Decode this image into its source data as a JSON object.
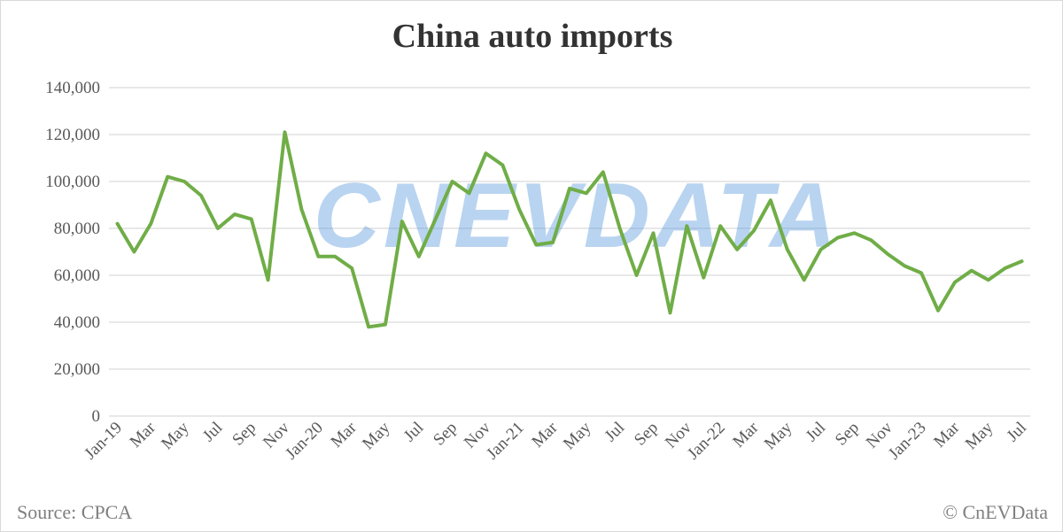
{
  "chart_data": {
    "type": "line",
    "title": "China auto imports",
    "xlabel": "",
    "ylabel": "",
    "ylim": [
      0,
      140000
    ],
    "yticks": [
      "0",
      "20,000",
      "40,000",
      "60,000",
      "80,000",
      "100,000",
      "120,000",
      "140,000"
    ],
    "grid": true,
    "legend": "none",
    "series_color": "#70ad47",
    "x": [
      "Jan-19",
      "Feb",
      "Mar",
      "Apr",
      "May",
      "Jun",
      "Jul",
      "Aug",
      "Sep",
      "Oct",
      "Nov",
      "Dec",
      "Jan-20",
      "Feb",
      "Mar",
      "Apr",
      "May",
      "Jun",
      "Jul",
      "Aug",
      "Sep",
      "Oct",
      "Nov",
      "Dec",
      "Jan-21",
      "Feb",
      "Mar",
      "Apr",
      "May",
      "Jun",
      "Jul",
      "Aug",
      "Sep",
      "Oct",
      "Nov",
      "Dec",
      "Jan-22",
      "Feb",
      "Mar",
      "Apr",
      "May",
      "Jun",
      "Jul",
      "Aug",
      "Sep",
      "Oct",
      "Nov",
      "Dec",
      "Jan-23",
      "Feb",
      "Mar",
      "Apr",
      "May",
      "Jun",
      "Jul"
    ],
    "x_tick_labels": [
      "Jan-19",
      "Mar",
      "May",
      "Jul",
      "Sep",
      "Nov",
      "Jan-20",
      "Mar",
      "May",
      "Jul",
      "Sep",
      "Nov",
      "Jan-21",
      "Mar",
      "May",
      "Jul",
      "Sep",
      "Nov",
      "Jan-22",
      "Mar",
      "May",
      "Jul",
      "Sep",
      "Nov",
      "Jan-23",
      "Mar",
      "May",
      "Jul"
    ],
    "series": [
      {
        "values": [
          82000,
          70000,
          82000,
          102000,
          100000,
          94000,
          80000,
          86000,
          84000,
          58000,
          121000,
          88000,
          68000,
          68000,
          63000,
          38000,
          39000,
          83000,
          68000,
          84000,
          100000,
          95000,
          112000,
          107000,
          88000,
          73000,
          74000,
          97000,
          95000,
          104000,
          80000,
          60000,
          78000,
          44000,
          81000,
          59000,
          81000,
          71000,
          79000,
          92000,
          71000,
          58000,
          71000,
          76000,
          78000,
          75000,
          69000,
          64000,
          61000,
          45000,
          57000,
          62000,
          58000,
          63000,
          66000
        ]
      }
    ]
  },
  "watermark": "CNEVDATA",
  "footer": {
    "source": "Source: CPCA",
    "copyright": "© CnEVData"
  }
}
